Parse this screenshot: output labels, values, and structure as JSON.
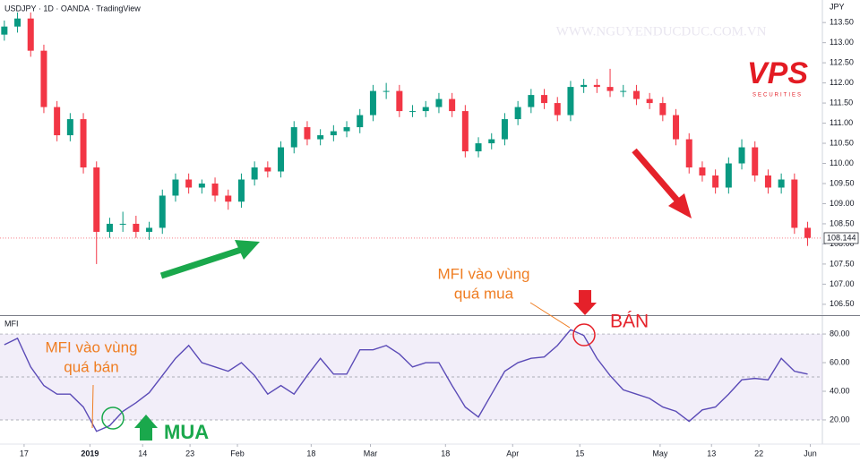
{
  "chart_data": [
    {
      "type": "candlestick",
      "title": "USDJPY · 1D · OANDA · TradingView",
      "currency": "JPY",
      "watermark": "WWW.NGUYENDUCDUC.COM.VN",
      "logo": "VPS",
      "logo_sub": "SECURITIES",
      "up_color": "#089981",
      "down_color": "#f23645",
      "open": [
        113.2,
        113.4,
        113.6,
        112.8,
        111.4,
        110.7,
        111.1,
        109.9,
        108.3,
        108.5,
        108.5,
        108.3,
        108.4,
        109.2,
        109.6,
        109.4,
        109.5,
        109.2,
        109.05,
        109.6,
        109.9,
        109.8,
        110.4,
        110.9,
        110.6,
        110.7,
        110.8,
        110.9,
        111.2,
        111.8,
        111.8,
        111.3,
        111.3,
        111.4,
        111.6,
        111.3,
        110.3,
        110.5,
        110.6,
        111.1,
        111.4,
        111.7,
        111.5,
        111.2,
        111.9,
        111.95,
        111.9,
        111.8,
        111.8,
        111.6,
        111.5,
        111.2,
        110.6,
        109.9,
        109.7,
        109.4,
        110.0,
        110.4,
        109.7,
        109.4,
        109.6,
        108.4
      ],
      "high": [
        113.55,
        113.75,
        113.75,
        112.95,
        111.55,
        111.25,
        111.25,
        110.05,
        108.65,
        108.8,
        108.7,
        108.55,
        109.35,
        109.75,
        109.75,
        109.6,
        109.65,
        109.35,
        109.75,
        110.05,
        110.05,
        110.55,
        111.05,
        111.05,
        110.85,
        110.95,
        111.05,
        111.35,
        111.95,
        112.0,
        111.95,
        111.45,
        111.55,
        111.75,
        111.75,
        111.45,
        110.65,
        110.75,
        111.25,
        111.55,
        111.85,
        111.85,
        111.65,
        112.05,
        112.1,
        112.1,
        112.35,
        111.95,
        111.95,
        111.75,
        111.65,
        111.35,
        110.75,
        110.05,
        109.85,
        110.15,
        110.6,
        110.55,
        109.85,
        109.75,
        109.75,
        108.55
      ],
      "low": [
        113.05,
        113.25,
        112.65,
        111.25,
        110.55,
        110.55,
        109.75,
        107.5,
        108.15,
        108.3,
        108.15,
        108.1,
        108.25,
        109.05,
        109.25,
        109.25,
        109.05,
        108.85,
        108.9,
        109.45,
        109.65,
        109.65,
        110.25,
        110.45,
        110.45,
        110.55,
        110.65,
        110.75,
        111.05,
        111.6,
        111.15,
        111.15,
        111.15,
        111.25,
        111.15,
        110.15,
        110.15,
        110.35,
        110.45,
        110.95,
        111.25,
        111.35,
        111.05,
        111.05,
        111.75,
        111.75,
        111.65,
        111.65,
        111.45,
        111.35,
        111.05,
        110.45,
        109.75,
        109.55,
        109.25,
        109.25,
        109.85,
        109.55,
        109.25,
        109.25,
        108.25,
        107.95
      ],
      "close": [
        113.4,
        113.6,
        112.8,
        111.4,
        110.7,
        111.1,
        109.9,
        108.3,
        108.5,
        108.5,
        108.3,
        108.4,
        109.2,
        109.6,
        109.4,
        109.5,
        109.2,
        109.05,
        109.6,
        109.9,
        109.8,
        110.4,
        110.9,
        110.6,
        110.7,
        110.8,
        110.9,
        111.2,
        111.8,
        111.8,
        111.3,
        111.3,
        111.4,
        111.6,
        111.3,
        110.3,
        110.5,
        110.6,
        111.1,
        111.4,
        111.7,
        111.5,
        111.2,
        111.9,
        111.95,
        111.9,
        111.8,
        111.8,
        111.6,
        111.5,
        111.2,
        110.6,
        109.9,
        109.7,
        109.4,
        110.0,
        110.4,
        109.7,
        109.4,
        109.6,
        108.4,
        108.15
      ],
      "last_price": {
        "value": 108.144,
        "label": "108.144"
      },
      "xlim": [
        -0.33,
        62.12
      ],
      "xticks": [
        {
          "value": 1.5,
          "label": "17"
        },
        {
          "value": 6.5,
          "label": "2019"
        },
        {
          "value": 10.5,
          "label": "14"
        },
        {
          "value": 14.1,
          "label": "23"
        },
        {
          "value": 17.7,
          "label": "Feb"
        },
        {
          "value": 23.3,
          "label": "18"
        },
        {
          "value": 27.8,
          "label": "Mar"
        },
        {
          "value": 33.5,
          "label": "18"
        },
        {
          "value": 38.6,
          "label": "Apr"
        },
        {
          "value": 43.7,
          "label": "15"
        },
        {
          "value": 49.8,
          "label": "May"
        },
        {
          "value": 53.7,
          "label": "13"
        },
        {
          "value": 57.3,
          "label": "22"
        },
        {
          "value": 61.2,
          "label": "Jun"
        }
      ],
      "ylim": [
        106.23,
        114.06
      ],
      "yticks": [
        {
          "value": 106.5,
          "label": "106.50"
        },
        {
          "value": 107,
          "label": "107.00"
        },
        {
          "value": 107.5,
          "label": "107.50"
        },
        {
          "value": 108,
          "label": "108.00"
        },
        {
          "value": 108.5,
          "label": "108.50"
        },
        {
          "value": 109,
          "label": "109.00"
        },
        {
          "value": 109.5,
          "label": "109.50"
        },
        {
          "value": 110,
          "label": "110.00"
        },
        {
          "value": 110.5,
          "label": "110.50"
        },
        {
          "value": 111,
          "label": "111.00"
        },
        {
          "value": 111.5,
          "label": "111.50"
        },
        {
          "value": 112,
          "label": "112.00"
        },
        {
          "value": 112.5,
          "label": "112.50"
        },
        {
          "value": 113,
          "label": "113.00"
        },
        {
          "value": 113.5,
          "label": "113.50"
        }
      ]
    },
    {
      "type": "line",
      "title": "MFI",
      "series": [
        {
          "name": "MFI",
          "color": "#5b4bb7",
          "values": [
            72.5,
            77,
            57,
            44,
            38,
            38,
            29,
            12,
            16,
            26,
            32,
            39,
            51,
            63,
            72,
            60,
            57,
            54,
            60,
            51,
            38,
            44,
            38,
            51,
            63,
            52,
            52,
            69,
            69,
            72,
            66,
            57,
            60,
            60,
            44,
            29,
            22,
            38,
            54,
            60,
            63,
            64,
            72,
            83,
            79,
            63,
            51,
            41,
            38,
            35,
            29,
            26,
            19,
            27,
            29,
            38,
            48,
            49,
            48,
            63,
            54,
            52
          ]
        }
      ],
      "band": {
        "upper": 80,
        "middle": 50,
        "lower": 20
      },
      "ylim": [
        5.6,
        91.3
      ],
      "yticks": [
        {
          "value": 20,
          "label": "20.00"
        },
        {
          "value": 40,
          "label": "40.00"
        },
        {
          "value": 60,
          "label": "60.00"
        },
        {
          "value": 80,
          "label": "80.00"
        }
      ],
      "annotations": [
        "MFI vào vùng",
        "quá bán",
        "MFI vào vùng",
        "quá mua",
        "BÁN",
        "MUA"
      ]
    }
  ]
}
